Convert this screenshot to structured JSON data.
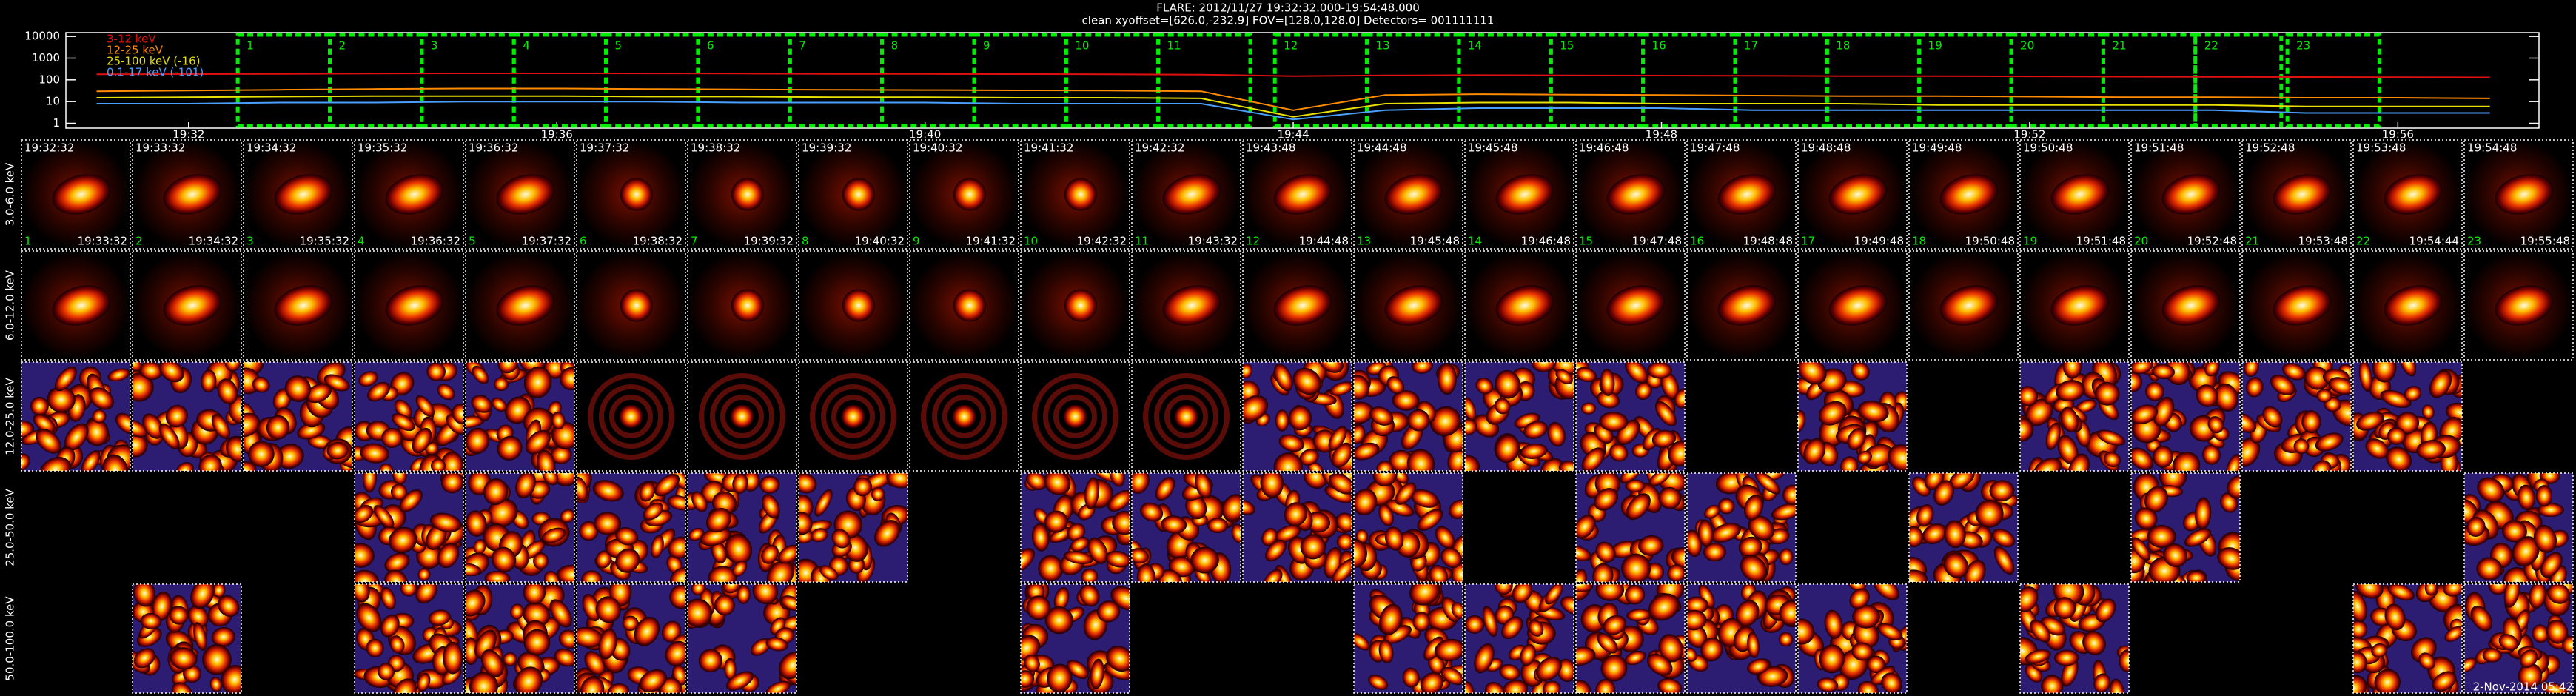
{
  "chart_data": {
    "type": "line",
    "title": "FLARE: 2012/11/27 19:32:32.000-19:54:48.000",
    "subtitle": "clean    xyoffset=[626.0,-232.9]    FOV=[128.0,128.0]    Detectors= 001111111",
    "log_y": true,
    "xlim": [
      "19:30:40",
      "19:57:32"
    ],
    "xticks": [
      "19:32",
      "19:36",
      "19:40",
      "19:44",
      "19:48",
      "19:52",
      "19:56"
    ],
    "ylim": [
      0.6,
      15000
    ],
    "yticks": [
      1,
      10,
      100,
      1000,
      10000
    ],
    "x": [
      "19:31",
      "19:32",
      "19:33",
      "19:34",
      "19:35",
      "19:36",
      "19:37",
      "19:38",
      "19:39",
      "19:40",
      "19:41",
      "19:42",
      "19:43",
      "19:44",
      "19:45",
      "19:46",
      "19:47",
      "19:48",
      "19:49",
      "19:50",
      "19:51",
      "19:52",
      "19:53",
      "19:54",
      "19:55",
      "19:56",
      "19:57"
    ],
    "series": [
      {
        "name": "3-12 keV",
        "color": "#e01010",
        "values": [
          180,
          185,
          190,
          195,
          200,
          200,
          198,
          195,
          190,
          188,
          185,
          180,
          175,
          150,
          160,
          165,
          160,
          158,
          155,
          150,
          148,
          145,
          140,
          138,
          135,
          132,
          130
        ]
      },
      {
        "name": "12-25 keV",
        "color": "#ff8c00",
        "values": [
          30,
          32,
          35,
          38,
          40,
          40,
          38,
          36,
          35,
          34,
          33,
          32,
          30,
          4,
          20,
          22,
          21,
          20,
          19,
          18,
          18,
          17,
          16,
          16,
          15,
          15,
          14
        ]
      },
      {
        "name": "25-100 keV (-16)",
        "color": "#e8e000",
        "values": [
          15,
          16,
          17,
          18,
          18,
          18,
          17,
          17,
          16,
          16,
          15,
          15,
          14,
          2,
          8,
          9,
          9,
          8,
          8,
          8,
          7,
          7,
          7,
          7,
          6,
          6,
          6
        ]
      },
      {
        "name": "0.1-17 keV (-101)",
        "color": "#4aa0ff",
        "values": [
          8,
          8,
          9,
          9,
          10,
          10,
          10,
          9,
          9,
          9,
          8,
          8,
          8,
          1.5,
          4,
          5,
          5,
          5,
          4,
          4,
          4,
          4,
          4,
          4,
          3,
          3,
          3
        ]
      }
    ]
  },
  "image_grid": {
    "intervals": [
      {
        "number": 1,
        "start": "19:32:32",
        "end": "19:33:32"
      },
      {
        "number": 2,
        "start": "19:33:32",
        "end": "19:34:32"
      },
      {
        "number": 3,
        "start": "19:34:32",
        "end": "19:35:32"
      },
      {
        "number": 4,
        "start": "19:35:32",
        "end": "19:36:32"
      },
      {
        "number": 5,
        "start": "19:36:32",
        "end": "19:37:32"
      },
      {
        "number": 6,
        "start": "19:37:32",
        "end": "19:38:32"
      },
      {
        "number": 7,
        "start": "19:38:32",
        "end": "19:39:32"
      },
      {
        "number": 8,
        "start": "19:39:32",
        "end": "19:40:32"
      },
      {
        "number": 9,
        "start": "19:40:32",
        "end": "19:41:32"
      },
      {
        "number": 10,
        "start": "19:41:32",
        "end": "19:42:32"
      },
      {
        "number": 11,
        "start": "19:42:32",
        "end": "19:43:32"
      },
      {
        "number": 12,
        "start": "19:43:48",
        "end": "19:44:48"
      },
      {
        "number": 13,
        "start": "19:44:48",
        "end": "19:45:48"
      },
      {
        "number": 14,
        "start": "19:45:48",
        "end": "19:46:48"
      },
      {
        "number": 15,
        "start": "19:46:48",
        "end": "19:47:48"
      },
      {
        "number": 16,
        "start": "19:47:48",
        "end": "19:48:48"
      },
      {
        "number": 17,
        "start": "19:48:48",
        "end": "19:49:48"
      },
      {
        "number": 18,
        "start": "19:49:48",
        "end": "19:50:48"
      },
      {
        "number": 19,
        "start": "19:50:48",
        "end": "19:51:48"
      },
      {
        "number": 20,
        "start": "19:51:48",
        "end": "19:52:48"
      },
      {
        "number": 21,
        "start": "19:52:48",
        "end": "19:53:48"
      },
      {
        "number": 22,
        "start": "19:53:48",
        "end": "19:54:44"
      },
      {
        "number": 23,
        "start": "19:54:48",
        "end": "19:55:48"
      }
    ],
    "bands": [
      {
        "label": "3.0-6.0 keV",
        "images": [
          true,
          true,
          true,
          true,
          true,
          true,
          true,
          true,
          true,
          true,
          true,
          true,
          true,
          true,
          true,
          true,
          true,
          true,
          true,
          true,
          true,
          true,
          true
        ]
      },
      {
        "label": "6.0-12.0 keV",
        "images": [
          true,
          true,
          true,
          true,
          true,
          true,
          true,
          true,
          true,
          true,
          true,
          true,
          true,
          true,
          true,
          true,
          true,
          true,
          true,
          true,
          true,
          true,
          true
        ]
      },
      {
        "label": "12.0-25.0 keV",
        "images": [
          true,
          true,
          true,
          true,
          true,
          true,
          true,
          true,
          true,
          true,
          true,
          true,
          true,
          true,
          true,
          false,
          true,
          false,
          true,
          true,
          true,
          true,
          false
        ]
      },
      {
        "label": "25.0-50.0 keV",
        "images": [
          false,
          false,
          false,
          true,
          true,
          true,
          true,
          true,
          false,
          true,
          true,
          true,
          true,
          false,
          true,
          true,
          false,
          true,
          false,
          true,
          false,
          false,
          true
        ]
      },
      {
        "label": "50.0-100.0 keV",
        "images": [
          false,
          true,
          false,
          true,
          true,
          true,
          true,
          false,
          false,
          true,
          false,
          false,
          true,
          true,
          true,
          true,
          true,
          false,
          true,
          false,
          false,
          true,
          true
        ]
      }
    ],
    "stamp": "2-Nov-2014 05:42"
  }
}
